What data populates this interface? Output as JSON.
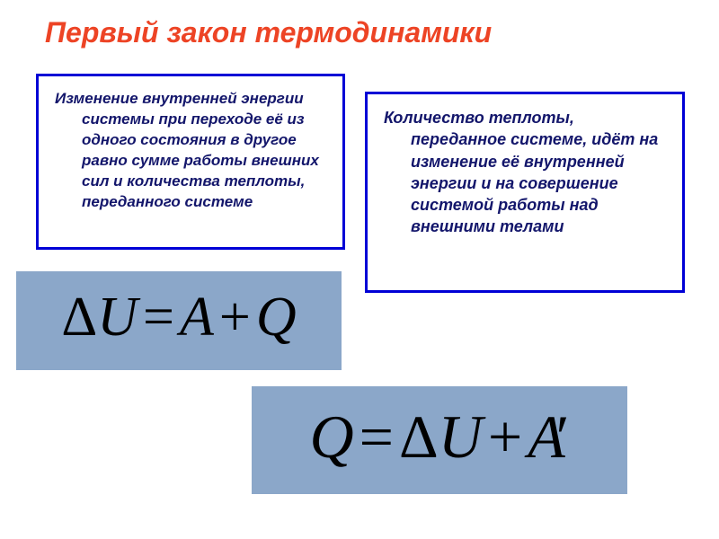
{
  "title": {
    "text": "Первый закон термодинамики",
    "color": "#ed4425",
    "fontsize": 32
  },
  "box_left": {
    "text": "Изменение внутренней энергии системы при переходе её из одного состояния в другое равно сумме работы внешних сил и количества теплоты, переданного системе",
    "border_color": "#0000d6",
    "text_color": "#13166b",
    "fontsize": 17
  },
  "box_right": {
    "text": "Количество теплоты, переданное системе, идёт на изменение её внутренней энергии и на совершение системой работы над внешними телами",
    "border_color": "#0000d6",
    "text_color": "#13166b",
    "fontsize": 18
  },
  "formula1": {
    "latex": "\\Delta U = A + Q",
    "display": "ΔU = A + Q",
    "lhs_delta": "Δ",
    "lhs_var": "U",
    "eq": "=",
    "r1": "A",
    "plus": "+",
    "r2": "Q",
    "bg_color": "#8ba7c9",
    "fontsize": 62
  },
  "formula2": {
    "latex": "Q = \\Delta U + A'",
    "display": "Q = ΔU + A′",
    "lhs": "Q",
    "eq": "=",
    "r1_delta": "Δ",
    "r1_var": "U",
    "plus": "+",
    "r2": "A",
    "prime": "′",
    "bg_color": "#8ba7c9",
    "fontsize": 68
  },
  "background_color": "#ffffff"
}
